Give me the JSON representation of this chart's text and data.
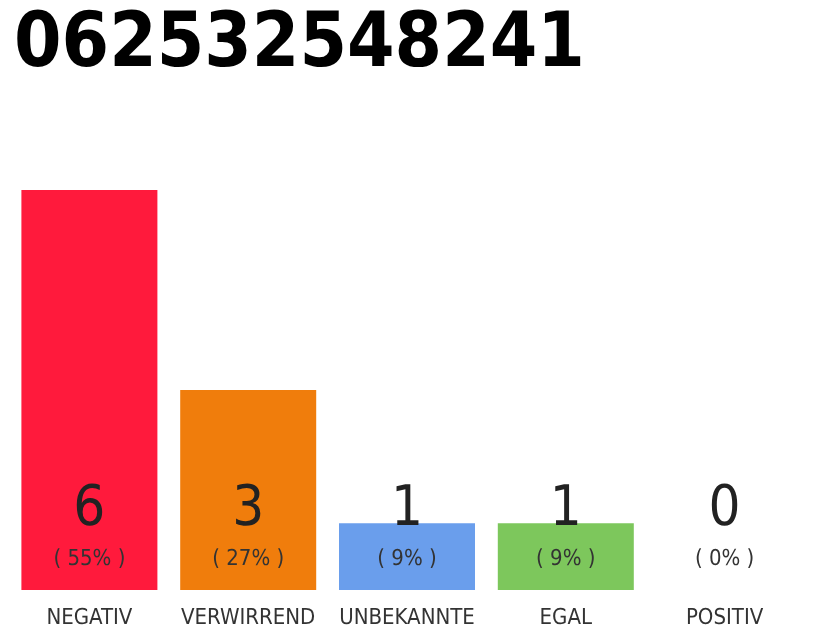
{
  "chart_data": {
    "type": "bar",
    "title": "062532548241",
    "categories": [
      "NEGATIV",
      "VERWIRREND",
      "UNBEKANNTE",
      "EGAL",
      "POSITIV"
    ],
    "values": [
      6,
      3,
      1,
      1,
      0
    ],
    "value_labels": [
      "6\n( 55% )",
      "3\n( 27% )",
      "1\n( 9% )",
      "1\n( 9% )",
      "0\n( 0% )"
    ],
    "colors": [
      "#ff1a3c",
      "#f07d0c",
      "#6a9eec",
      "#7dc75c",
      "#22aa44"
    ],
    "ylim": [
      0,
      6
    ]
  }
}
